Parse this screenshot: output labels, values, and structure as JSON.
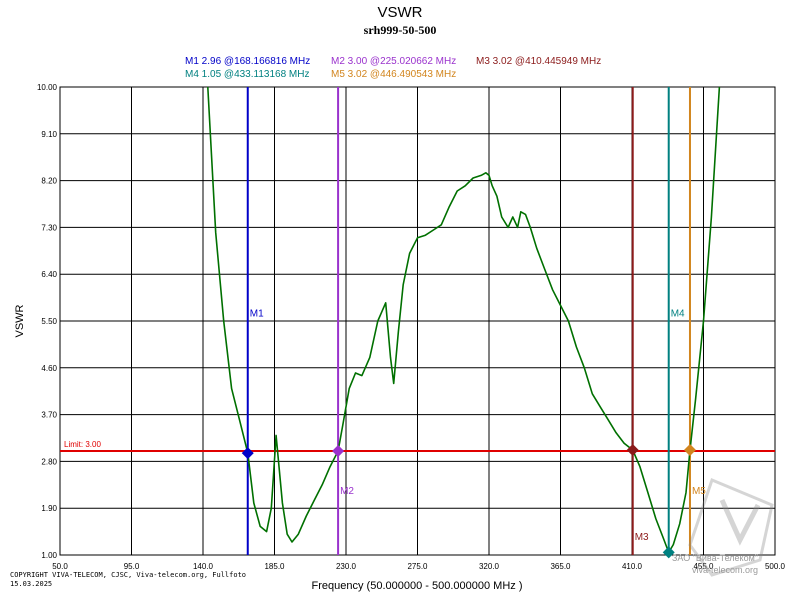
{
  "chart_data": {
    "type": "line",
    "title": "VSWR",
    "subtitle": "srh999-50-500",
    "xlabel": "Frequency (50.000000 - 500.000000 MHz )",
    "ylabel": "VSWR",
    "xlim": [
      50,
      500
    ],
    "ylim": [
      1,
      10
    ],
    "grid": true,
    "x_ticks": [
      "50.0",
      "95.0",
      "140.0",
      "185.0",
      "230.0",
      "275.0",
      "320.0",
      "365.0",
      "410.0",
      "455.0",
      "500.0"
    ],
    "x_tick_values": [
      50,
      95,
      140,
      185,
      230,
      275,
      320,
      365,
      410,
      455,
      500
    ],
    "y_ticks": [
      "10.00",
      "9.10",
      "8.20",
      "7.30",
      "6.40",
      "5.50",
      "4.60",
      "3.70",
      "2.80",
      "1.90",
      "1.00"
    ],
    "y_tick_values": [
      10,
      9.1,
      8.2,
      7.3,
      6.4,
      5.5,
      4.6,
      3.7,
      2.8,
      1.9,
      1.0
    ],
    "limit": {
      "value": 3.0,
      "label": "Limit: 3.00",
      "color": "#e00000"
    },
    "series": [
      {
        "name": "VSWR",
        "color": "#007000",
        "x": [
          143,
          148,
          153,
          158,
          163,
          168.17,
          172,
          176,
          180,
          183,
          186,
          190,
          193,
          196,
          200,
          205,
          210,
          215,
          220,
          225.02,
          228,
          232,
          236,
          240,
          245,
          250,
          255,
          258,
          260,
          263,
          266,
          270,
          275,
          280,
          285,
          290,
          295,
          300,
          305,
          310,
          315,
          318,
          320,
          322,
          325,
          328,
          332,
          335,
          338,
          340,
          343,
          346,
          350,
          355,
          360,
          365,
          370,
          375,
          380,
          385,
          390,
          395,
          400,
          405,
          410.45,
          415,
          420,
          425,
          430,
          433.11,
          436,
          440,
          444,
          446.49,
          450,
          455,
          460,
          465
        ],
        "y": [
          10.0,
          7.2,
          5.5,
          4.2,
          3.6,
          2.96,
          2.0,
          1.55,
          1.45,
          1.9,
          3.3,
          2.0,
          1.4,
          1.25,
          1.4,
          1.75,
          2.05,
          2.35,
          2.7,
          3.0,
          3.5,
          4.2,
          4.5,
          4.45,
          4.8,
          5.5,
          5.85,
          4.8,
          4.3,
          5.3,
          6.2,
          6.8,
          7.1,
          7.15,
          7.25,
          7.35,
          7.7,
          8.0,
          8.1,
          8.25,
          8.3,
          8.35,
          8.3,
          8.1,
          7.9,
          7.5,
          7.3,
          7.5,
          7.3,
          7.6,
          7.55,
          7.3,
          6.9,
          6.5,
          6.1,
          5.8,
          5.5,
          5.0,
          4.6,
          4.1,
          3.85,
          3.6,
          3.35,
          3.15,
          3.02,
          2.7,
          2.2,
          1.7,
          1.3,
          1.05,
          1.2,
          1.6,
          2.2,
          3.02,
          4.0,
          5.5,
          7.5,
          10.0
        ]
      }
    ],
    "markers": [
      {
        "name": "M1",
        "readout": "M1   2.96 @168.166816 MHz",
        "freq": 168.166816,
        "vswr": 2.96,
        "color": "#0000c8"
      },
      {
        "name": "M2",
        "readout": "M2   3.00 @225.020662 MHz",
        "freq": 225.020662,
        "vswr": 3.0,
        "color": "#9a32cd"
      },
      {
        "name": "M3",
        "readout": "M3   3.02 @410.445949 MHz",
        "freq": 410.445949,
        "vswr": 3.02,
        "color": "#8b1a1a"
      },
      {
        "name": "M4",
        "readout": "M4   1.05 @433.113168 MHz",
        "freq": 433.113168,
        "vswr": 1.05,
        "color": "#008080"
      },
      {
        "name": "M5",
        "readout": "M5   3.02 @446.490543 MHz",
        "freq": 446.490543,
        "vswr": 3.02,
        "color": "#d2851e"
      }
    ]
  },
  "footer": {
    "copyright": "COPYRIGHT VIVA-TELECOM, CJSC, Viva-telecom.org, Fullfoto",
    "date": "15.03.2025",
    "watermark_1": "ЗАО \"Вива-Телеком\"",
    "watermark_2": "viva-telecom.org"
  }
}
